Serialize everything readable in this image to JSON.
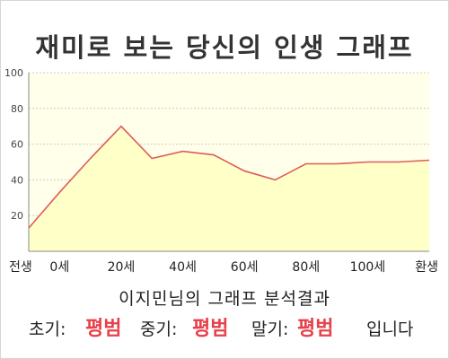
{
  "title": "재미로 보는 당신의 인생 그래프",
  "chart_data": {
    "type": "area",
    "title": "재미로 보는 당신의 인생 그래프",
    "x_tick_labels": [
      "전생",
      "0세",
      "20세",
      "40세",
      "60세",
      "80세",
      "100세",
      "환생"
    ],
    "x": [
      "전생",
      "0세",
      "10세",
      "20세",
      "30세",
      "40세",
      "50세",
      "60세",
      "70세",
      "80세",
      "90세",
      "100세",
      "110세",
      "환생"
    ],
    "series": [
      {
        "values": [
          13,
          33,
          52,
          70,
          52,
          56,
          54,
          45,
          40,
          49,
          49,
          50,
          50,
          51
        ]
      }
    ],
    "ylim": [
      0,
      100
    ],
    "yticks": [
      20,
      40,
      60,
      80,
      100
    ],
    "grid": true,
    "colors": {
      "line": "#e05a5a",
      "fill": "#ffffc8",
      "background": "#ffffea",
      "grid": "#cccccc"
    }
  },
  "analysis": {
    "heading": "이지민님의 그래프 분석결과",
    "early_label": "초기:",
    "early_value": "평범",
    "middle_label": "중기:",
    "middle_value": "평범",
    "late_label": "말기:",
    "late_value": "평범",
    "suffix": "입니다"
  }
}
